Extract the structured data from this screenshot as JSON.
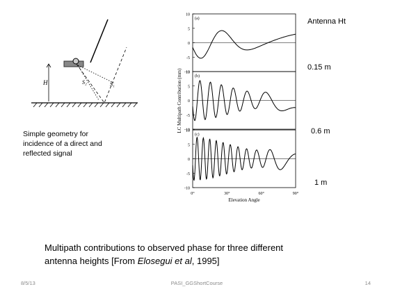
{
  "diagram": {
    "labels": [
      "H",
      "S₂",
      "S₁"
    ],
    "caption": [
      "Simple geometry for",
      "incidence of a direct and",
      "reflected signal"
    ]
  },
  "figure": {
    "panels": [
      {
        "label": "(a)",
        "height": "0.15 m"
      },
      {
        "label": "(b)",
        "height": "0.6 m"
      },
      {
        "label": "(c)",
        "height": "1 m"
      }
    ],
    "yticks": [
      10,
      5,
      0,
      -5,
      -10
    ],
    "xticks": [
      "0°",
      "30°",
      "60°",
      "90°"
    ],
    "ylabel": "LC Multipath Contribution (mm)",
    "xlabel": "Elevation Angle",
    "legend_title": "Antenna Ht"
  },
  "caption": {
    "line1": "Multipath contributions to observed phase for three different",
    "line2": [
      "antenna heights  [From ",
      "Elosegui et al",
      ", 1995]"
    ]
  },
  "footer": {
    "date": "8/5/13",
    "course": "PASI_GGShortCourse",
    "page": "14"
  }
}
